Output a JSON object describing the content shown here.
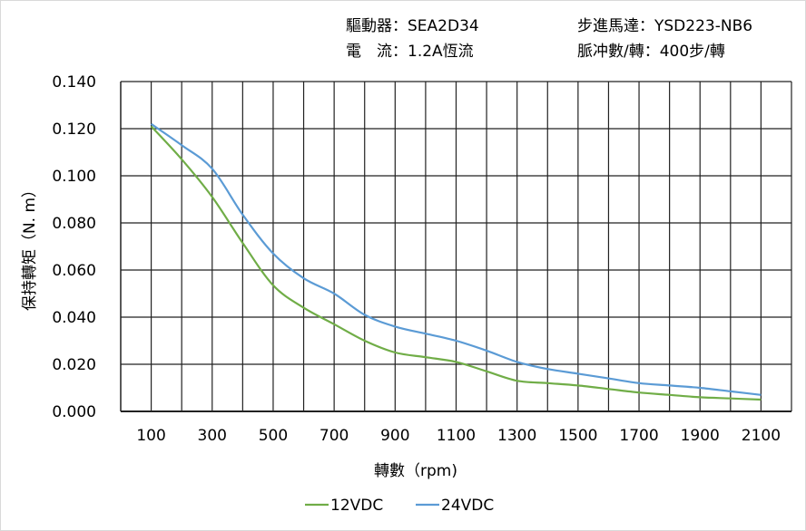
{
  "header": {
    "driver": "驅動器：SEA2D34",
    "motor": "步進馬達：YSD223-NB6",
    "current": "電　流：1.2A恆流",
    "pulses": "脈冲數/轉：400步/轉"
  },
  "chart_data": {
    "type": "line",
    "title": "",
    "xlabel": "轉數（rpm)",
    "ylabel": "保持轉矩（N. m）",
    "xlim": [
      0,
      2200
    ],
    "ylim": [
      0,
      0.14
    ],
    "grid": true,
    "legend_placement": "bottom",
    "x_tick_labels": [
      "100",
      "300",
      "500",
      "700",
      "900",
      "1100",
      "1300",
      "1500",
      "1700",
      "1900",
      "2100"
    ],
    "y_tick_labels": [
      "0.000",
      "0.020",
      "0.040",
      "0.060",
      "0.080",
      "0.100",
      "0.120",
      "0.140"
    ],
    "x": [
      100,
      200,
      300,
      400,
      500,
      600,
      700,
      800,
      900,
      1000,
      1100,
      1200,
      1300,
      1400,
      1500,
      1600,
      1700,
      1800,
      1900,
      2000,
      2100
    ],
    "series": [
      {
        "name": "12VDC",
        "color": "#70ad47",
        "values": [
          0.121,
          0.107,
          0.091,
          0.0715,
          0.0535,
          0.044,
          0.037,
          0.03,
          0.025,
          0.023,
          0.021,
          0.017,
          0.013,
          0.012,
          0.011,
          0.0095,
          0.008,
          0.007,
          0.006,
          0.0055,
          0.005
        ]
      },
      {
        "name": "24VDC",
        "color": "#5b9bd5",
        "values": [
          0.122,
          0.113,
          0.103,
          0.0835,
          0.067,
          0.0565,
          0.05,
          0.041,
          0.036,
          0.033,
          0.03,
          0.0258,
          0.021,
          0.018,
          0.016,
          0.014,
          0.012,
          0.011,
          0.01,
          0.0085,
          0.007
        ]
      }
    ]
  }
}
